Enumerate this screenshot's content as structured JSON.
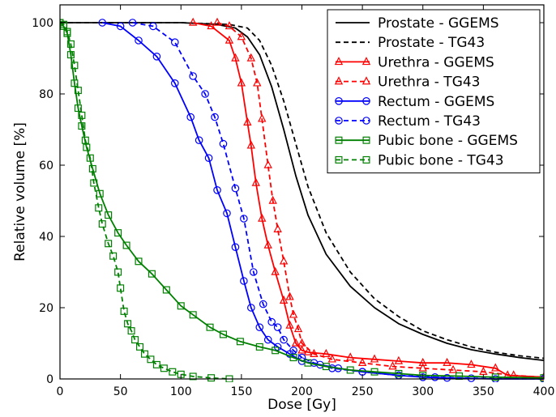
{
  "chart_data": {
    "type": "line",
    "xlabel": "Dose [Gy]",
    "ylabel": "Relative volume [%]",
    "xlim": [
      0,
      400
    ],
    "ylim": [
      0,
      105
    ],
    "xticks": [
      0,
      50,
      100,
      150,
      200,
      250,
      300,
      350,
      400
    ],
    "yticks": [
      0,
      20,
      40,
      60,
      80,
      100
    ],
    "grid": false,
    "legend_position": "top-right",
    "series": [
      {
        "name": "Prostate - GGEMS",
        "color": "#000000",
        "dash": "solid",
        "marker": "none",
        "points": [
          [
            0,
            100
          ],
          [
            60,
            100
          ],
          [
            100,
            100
          ],
          [
            130,
            99.5
          ],
          [
            145,
            98.5
          ],
          [
            155,
            96
          ],
          [
            165,
            91
          ],
          [
            175,
            82
          ],
          [
            185,
            70
          ],
          [
            195,
            57
          ],
          [
            205,
            46
          ],
          [
            220,
            35
          ],
          [
            240,
            26
          ],
          [
            260,
            20
          ],
          [
            280,
            15.5
          ],
          [
            300,
            12.5
          ],
          [
            320,
            10
          ],
          [
            340,
            8.2
          ],
          [
            360,
            7
          ],
          [
            380,
            6
          ],
          [
            400,
            5.2
          ]
        ]
      },
      {
        "name": "Prostate - TG43",
        "color": "#000000",
        "dash": "dashed",
        "marker": "none",
        "points": [
          [
            0,
            100
          ],
          [
            60,
            100
          ],
          [
            100,
            100
          ],
          [
            140,
            99.5
          ],
          [
            155,
            98.5
          ],
          [
            165,
            95
          ],
          [
            175,
            88
          ],
          [
            185,
            78
          ],
          [
            195,
            66
          ],
          [
            205,
            54
          ],
          [
            220,
            41
          ],
          [
            240,
            30
          ],
          [
            260,
            22.5
          ],
          [
            280,
            17.5
          ],
          [
            300,
            13.5
          ],
          [
            320,
            11
          ],
          [
            340,
            9
          ],
          [
            360,
            7.5
          ],
          [
            380,
            6.5
          ],
          [
            400,
            5.8
          ]
        ]
      },
      {
        "name": "Urethra - GGEMS",
        "color": "#ff0000",
        "dash": "solid",
        "marker": "triangle",
        "points": [
          [
            110,
            100
          ],
          [
            125,
            99
          ],
          [
            140,
            95
          ],
          [
            145,
            90
          ],
          [
            150,
            83
          ],
          [
            155,
            72
          ],
          [
            158,
            65.5
          ],
          [
            162,
            55
          ],
          [
            167,
            45
          ],
          [
            172,
            37.5
          ],
          [
            178,
            30
          ],
          [
            185,
            22
          ],
          [
            190,
            15
          ],
          [
            195,
            10
          ],
          [
            200,
            8
          ],
          [
            205,
            7.5
          ],
          [
            220,
            7
          ],
          [
            240,
            6
          ],
          [
            260,
            5.5
          ],
          [
            280,
            5
          ],
          [
            300,
            4.5
          ],
          [
            320,
            4.5
          ],
          [
            340,
            4
          ],
          [
            360,
            3
          ],
          [
            370,
            1
          ],
          [
            400,
            0.5
          ]
        ]
      },
      {
        "name": "Urethra - TG43",
        "color": "#ff0000",
        "dash": "dashed",
        "marker": "triangle",
        "points": [
          [
            130,
            100
          ],
          [
            140,
            99
          ],
          [
            150,
            96
          ],
          [
            158,
            90
          ],
          [
            163,
            83
          ],
          [
            167,
            73
          ],
          [
            172,
            60
          ],
          [
            176,
            50
          ],
          [
            180,
            42
          ],
          [
            185,
            33
          ],
          [
            190,
            23
          ],
          [
            193,
            18
          ],
          [
            197,
            14
          ],
          [
            200,
            10
          ],
          [
            210,
            7
          ],
          [
            225,
            5.5
          ],
          [
            250,
            4.5
          ],
          [
            275,
            3.5
          ],
          [
            300,
            3
          ],
          [
            325,
            2.5
          ],
          [
            350,
            2
          ],
          [
            375,
            1
          ],
          [
            400,
            0.5
          ]
        ]
      },
      {
        "name": "Rectum - GGEMS",
        "color": "#0000ff",
        "dash": "solid",
        "marker": "circle",
        "points": [
          [
            35,
            100
          ],
          [
            50,
            99
          ],
          [
            65,
            95
          ],
          [
            80,
            90.5
          ],
          [
            95,
            83
          ],
          [
            108,
            73.5
          ],
          [
            115,
            67
          ],
          [
            123,
            62
          ],
          [
            130,
            53
          ],
          [
            138,
            46.5
          ],
          [
            145,
            37
          ],
          [
            152,
            27.5
          ],
          [
            158,
            20
          ],
          [
            165,
            14.5
          ],
          [
            172,
            11
          ],
          [
            180,
            9
          ],
          [
            190,
            7
          ],
          [
            200,
            5
          ],
          [
            215,
            4
          ],
          [
            230,
            3
          ],
          [
            250,
            2
          ],
          [
            280,
            1
          ],
          [
            300,
            0.5
          ],
          [
            320,
            0.3
          ],
          [
            360,
            0
          ],
          [
            400,
            0
          ]
        ]
      },
      {
        "name": "Rectum - TG43",
        "color": "#0000ff",
        "dash": "dashed",
        "marker": "circle",
        "points": [
          [
            60,
            100
          ],
          [
            77,
            99
          ],
          [
            95,
            94.5
          ],
          [
            110,
            85
          ],
          [
            120,
            80
          ],
          [
            128,
            73.5
          ],
          [
            135,
            66
          ],
          [
            145,
            53.5
          ],
          [
            152,
            45
          ],
          [
            160,
            30
          ],
          [
            168,
            21
          ],
          [
            175,
            16
          ],
          [
            180,
            14.5
          ],
          [
            185,
            11
          ],
          [
            193,
            8
          ],
          [
            200,
            6
          ],
          [
            210,
            4.5
          ],
          [
            225,
            3
          ],
          [
            250,
            2
          ],
          [
            280,
            1
          ],
          [
            310,
            0.5
          ],
          [
            340,
            0.2
          ],
          [
            400,
            0
          ]
        ]
      },
      {
        "name": "Pubic bone - GGEMS",
        "color": "#008000",
        "dash": "solid",
        "marker": "square",
        "points": [
          [
            0,
            100
          ],
          [
            3,
            99
          ],
          [
            6,
            97
          ],
          [
            9,
            91
          ],
          [
            12,
            83
          ],
          [
            15,
            76
          ],
          [
            18,
            71
          ],
          [
            22,
            65
          ],
          [
            27,
            59
          ],
          [
            33,
            52
          ],
          [
            40,
            46
          ],
          [
            48,
            41
          ],
          [
            55,
            37.5
          ],
          [
            65,
            33
          ],
          [
            76,
            29.5
          ],
          [
            88,
            25
          ],
          [
            100,
            20.5
          ],
          [
            110,
            18
          ],
          [
            124,
            14.5
          ],
          [
            135,
            12.5
          ],
          [
            149,
            10.5
          ],
          [
            165,
            9
          ],
          [
            178,
            8
          ],
          [
            193,
            6
          ],
          [
            205,
            4.5
          ],
          [
            220,
            3.5
          ],
          [
            240,
            2.5
          ],
          [
            260,
            2
          ],
          [
            280,
            1.5
          ],
          [
            300,
            1
          ],
          [
            330,
            0.8
          ],
          [
            360,
            0.5
          ],
          [
            400,
            0.3
          ]
        ]
      },
      {
        "name": "Pubic bone - TG43",
        "color": "#008000",
        "dash": "dashed",
        "marker": "square",
        "points": [
          [
            0,
            100
          ],
          [
            3,
            99.5
          ],
          [
            6,
            97.5
          ],
          [
            9,
            94
          ],
          [
            12,
            88
          ],
          [
            15,
            81
          ],
          [
            18,
            74
          ],
          [
            21,
            67
          ],
          [
            25,
            62
          ],
          [
            28,
            55
          ],
          [
            32,
            48
          ],
          [
            35,
            43.5
          ],
          [
            40,
            38
          ],
          [
            44,
            34.5
          ],
          [
            48,
            30
          ],
          [
            50,
            25.5
          ],
          [
            53,
            19
          ],
          [
            56,
            15.5
          ],
          [
            59,
            13.5
          ],
          [
            62,
            11
          ],
          [
            66,
            9
          ],
          [
            70,
            7
          ],
          [
            75,
            5.5
          ],
          [
            80,
            4
          ],
          [
            86,
            3
          ],
          [
            93,
            2
          ],
          [
            100,
            1.3
          ],
          [
            110,
            0.7
          ],
          [
            125,
            0.3
          ],
          [
            140,
            0
          ]
        ]
      }
    ]
  }
}
